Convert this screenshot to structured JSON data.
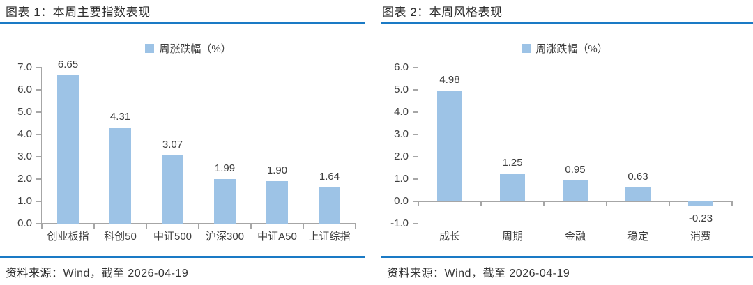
{
  "colors": {
    "rule_blue": "#1a7ac5",
    "axis_gray": "#a6a6a6",
    "accent_blue": "#9dc3e6",
    "text_dark": "#2f2f2f",
    "label_gray": "#3d3d3d"
  },
  "chart_data": [
    {
      "type": "bar",
      "title": "图表 1：本周主要指数表现",
      "legend": [
        "周涨跌幅（%）"
      ],
      "legend_position": "top-center",
      "categories": [
        "创业板指",
        "科创50",
        "中证500",
        "沪深300",
        "中证A50",
        "上证综指"
      ],
      "values": [
        6.65,
        4.31,
        3.07,
        1.99,
        1.9,
        1.64
      ],
      "value_labels": [
        "6.65",
        "4.31",
        "3.07",
        "1.99",
        "1.90",
        "1.64"
      ],
      "ylim": [
        0,
        7
      ],
      "ytick_step": 1,
      "ytick_labels": [
        "0.0",
        "1.0",
        "2.0",
        "3.0",
        "4.0",
        "5.0",
        "6.0",
        "7.0"
      ],
      "grid": false,
      "bar_color": "#9dc3e6",
      "source": "资料来源：Wind，截至 2026-04-19"
    },
    {
      "type": "bar",
      "title": "图表 2：本周风格表现",
      "legend": [
        "周涨跌幅（%）"
      ],
      "legend_position": "top-center",
      "categories": [
        "成长",
        "周期",
        "金融",
        "稳定",
        "消费"
      ],
      "values": [
        4.98,
        1.25,
        0.95,
        0.63,
        -0.23
      ],
      "value_labels": [
        "4.98",
        "1.25",
        "0.95",
        "0.63",
        "-0.23"
      ],
      "ylim": [
        -1,
        6
      ],
      "ytick_step": 1,
      "ytick_labels": [
        "-1.0",
        "0.0",
        "1.0",
        "2.0",
        "3.0",
        "4.0",
        "5.0",
        "6.0"
      ],
      "grid": false,
      "bar_color": "#9dc3e6",
      "source": "资料来源：Wind，截至 2026-04-19"
    }
  ]
}
